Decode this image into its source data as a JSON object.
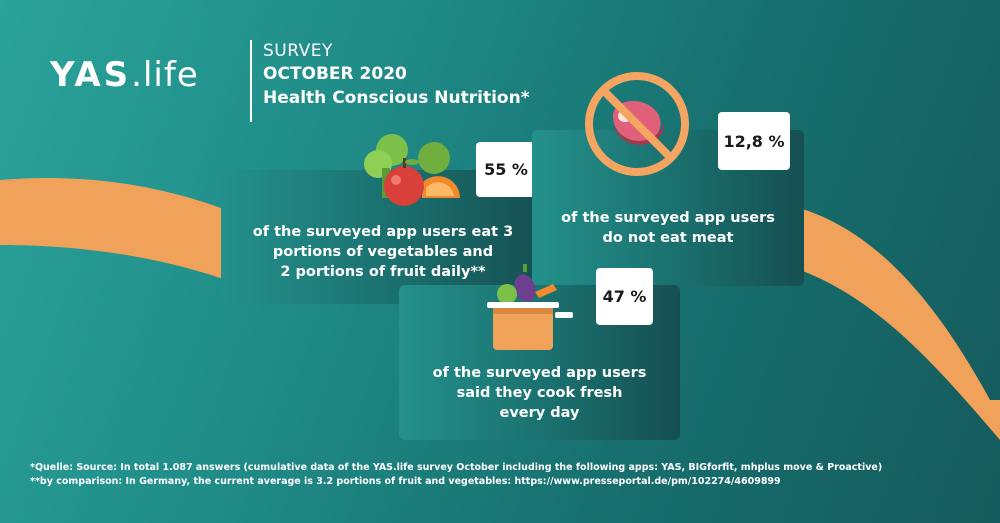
{
  "brand": {
    "logo_main": "YAS",
    "logo_dot": ".life"
  },
  "header": {
    "line1": "SURVEY",
    "line2": "OCTOBER 2020",
    "line3": "Health Conscious Nutrition*"
  },
  "cards": [
    {
      "stat": "55 %",
      "text_lines": [
        "of the surveyed app users eat 3",
        "portions of vegetables and",
        "2 portions of fruit daily**"
      ],
      "icon": "fruit-vegetables-icon"
    },
    {
      "stat": "12,8 %",
      "text_lines": [
        "of the surveyed app users",
        "do not eat meat"
      ],
      "icon": "no-meat-icon"
    },
    {
      "stat": "47 %",
      "text_lines": [
        "of the surveyed app users",
        "said they cook fresh",
        "every day"
      ],
      "icon": "cooking-pot-icon"
    }
  ],
  "footnotes": {
    "source": "*Quelle: Source: In total 1.087 answers (cumulative data of the YAS.life survey October including the following apps: YAS, BIGforfit, mhplus move & Proactive)",
    "comparison": "**by comparison: In Germany, the current average is 3.2 portions of fruit and vegetables: https://www.presseportal.de/pm/102274/4609899"
  },
  "colors": {
    "accent_orange": "#f0a25a",
    "no_sign": "#f3a561",
    "meat": "#e0607a",
    "pot": "#f0a25a"
  }
}
